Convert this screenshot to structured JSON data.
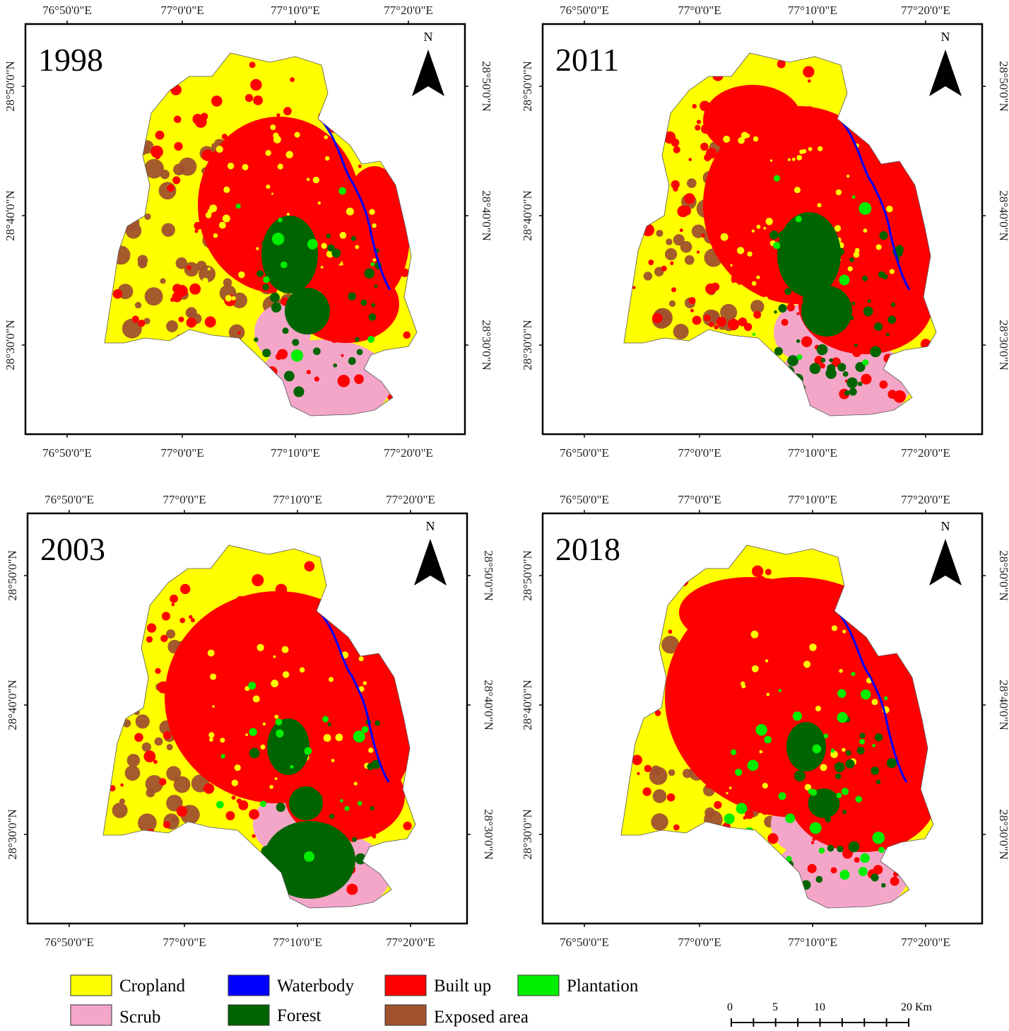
{
  "panels": [
    {
      "year": "1998",
      "stage": 0
    },
    {
      "year": "2011",
      "stage": 2
    },
    {
      "year": "2003",
      "stage": 1
    },
    {
      "year": "2018",
      "stage": 3
    }
  ],
  "axes": {
    "x_ticks": [
      "76°50'0\"E",
      "77°0'0\"E",
      "77°10'0\"E",
      "77°20'0\"E"
    ],
    "y_ticks": [
      "28°50'0\"N",
      "28°40'0\"N",
      "28°30'0\"N"
    ]
  },
  "north_arrow": {
    "label": "N"
  },
  "legend": [
    {
      "label": "Cropland",
      "color": "#ffff00"
    },
    {
      "label": "Waterbody",
      "color": "#0000ff"
    },
    {
      "label": "Built up",
      "color": "#ff0000"
    },
    {
      "label": "Plantation",
      "color": "#00ee00"
    },
    {
      "label": "Scrub",
      "color": "#f4a6c8"
    },
    {
      "label": "Forest",
      "color": "#006400"
    },
    {
      "label": "Exposed area",
      "color": "#a0522d"
    }
  ],
  "scale_bar": {
    "labels": [
      "0",
      "5",
      "10",
      "20 Km"
    ]
  }
}
